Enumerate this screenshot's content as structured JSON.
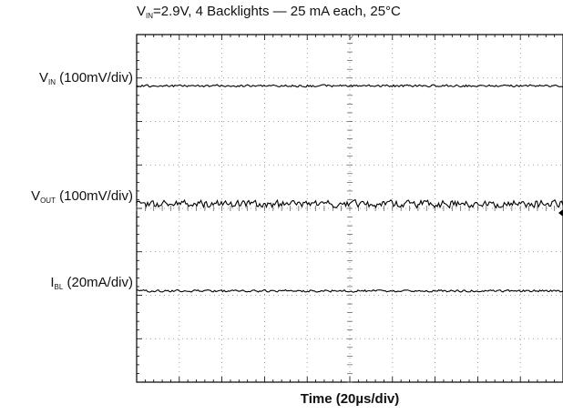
{
  "chart_data": {
    "type": "line",
    "title": {
      "main": "V",
      "sub": "IN",
      "rest": "=2.9V, 4 Backlights — 25 mA each, 25°C"
    },
    "xlabel": "Time (20µs/div)",
    "grid": true,
    "divisions": {
      "x": 10,
      "y": 8
    },
    "series": [
      {
        "name_main": "V",
        "name_sub": "IN",
        "name_rest": " (100mV/div)",
        "level_div": 1.18,
        "ripple_div": 0.03,
        "seed": 7
      },
      {
        "name_main": "V",
        "name_sub": "OUT",
        "name_rest": " (100mV/div)",
        "level_div": 3.9,
        "ripple_div": 0.1,
        "seed": 21
      },
      {
        "name_main": "I",
        "name_sub": "BL",
        "name_rest": " (20mA/div)",
        "level_div": 5.9,
        "ripple_div": 0.03,
        "seed": 42
      }
    ]
  }
}
